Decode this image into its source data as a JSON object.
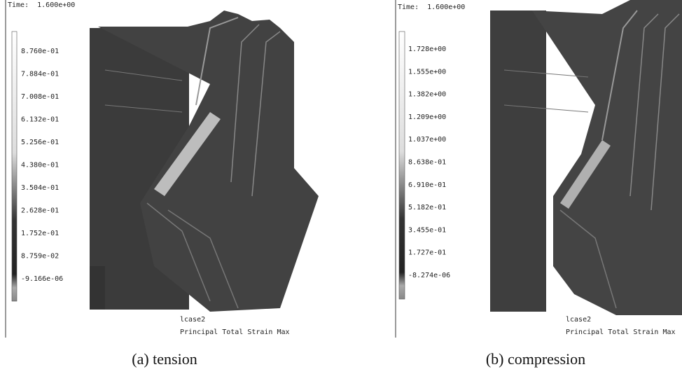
{
  "panels": [
    {
      "time": "Time:  1.600e+00",
      "legend": [
        "8.760e-01",
        "7.884e-01",
        "7.008e-01",
        "6.132e-01",
        "5.256e-01",
        "4.380e-01",
        "3.504e-01",
        "2.628e-01",
        "1.752e-01",
        "8.759e-02",
        "-9.166e-06"
      ],
      "case": "lcase2",
      "result": "Principal Total Strain Max",
      "caption": "(a)  tension"
    },
    {
      "time": "Time:  1.600e+00",
      "legend": [
        "1.728e+00",
        "1.555e+00",
        "1.382e+00",
        "1.209e+00",
        "1.037e+00",
        "8.638e-01",
        "6.910e-01",
        "5.182e-01",
        "3.455e-01",
        "1.727e-01",
        "-8.274e-06"
      ],
      "case": "lcase2",
      "result": "Principal Total Strain Max",
      "caption": "(b)  compression"
    }
  ]
}
